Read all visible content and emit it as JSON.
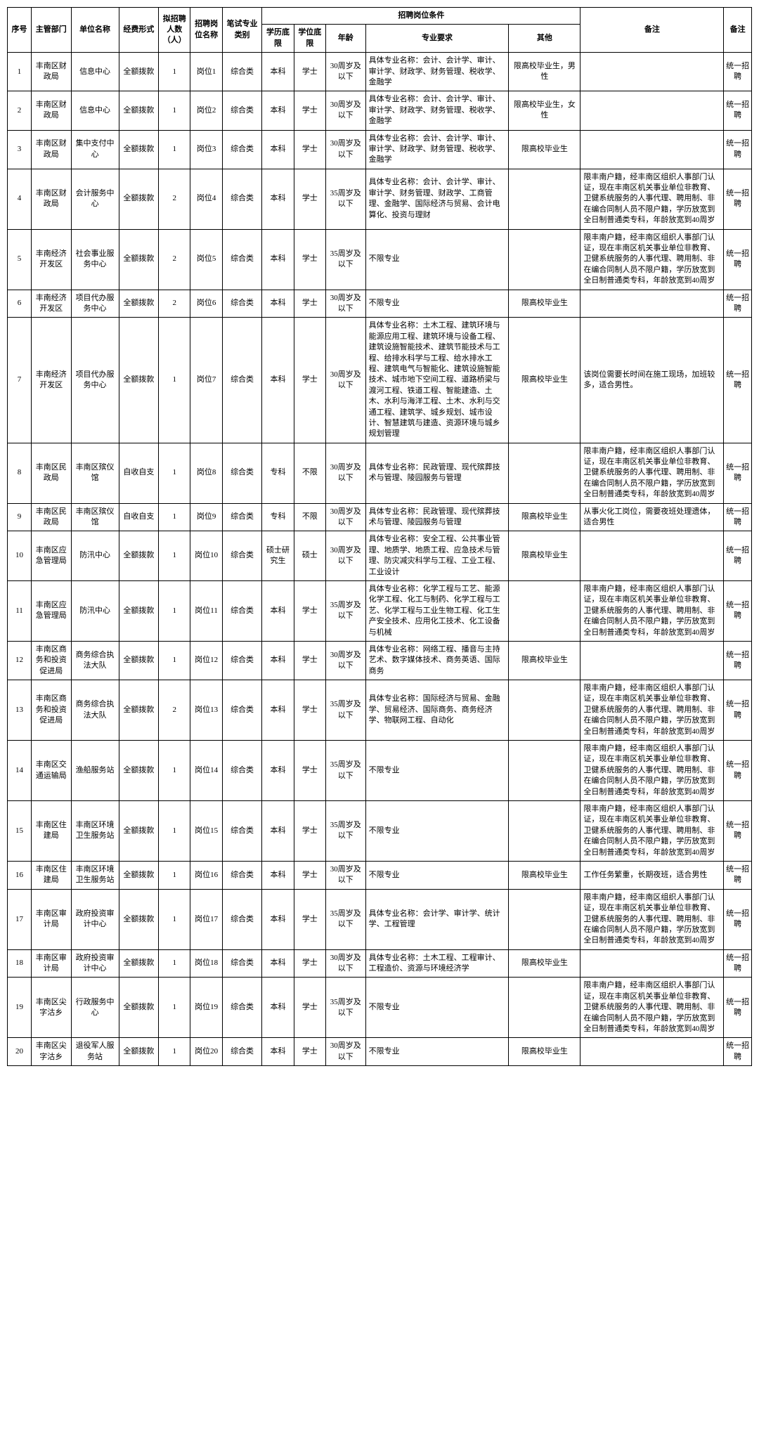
{
  "headers": {
    "seq": "序号",
    "dept": "主管部门",
    "unit": "单位名称",
    "fund": "经费形式",
    "num": "拟招聘人数（人）",
    "post": "招聘岗位名称",
    "exam": "笔试专业类别",
    "condGroup": "招聘岗位条件",
    "edu": "学历底限",
    "deg": "学位底限",
    "age": "年龄",
    "major": "专业要求",
    "other": "其他",
    "remark": "备注",
    "note": "备注"
  },
  "rows": [
    {
      "seq": "1",
      "dept": "丰南区财政局",
      "unit": "信息中心",
      "fund": "全额拨款",
      "num": "1",
      "post": "岗位1",
      "exam": "综合类",
      "edu": "本科",
      "deg": "学士",
      "age": "30周岁及以下",
      "major": "具体专业名称：会计、会计学、审计、审计学、财政学、财务管理、税收学、金融学",
      "other": "限高校毕业生，男性",
      "remark": "",
      "note": "统一招聘"
    },
    {
      "seq": "2",
      "dept": "丰南区财政局",
      "unit": "信息中心",
      "fund": "全额拨款",
      "num": "1",
      "post": "岗位2",
      "exam": "综合类",
      "edu": "本科",
      "deg": "学士",
      "age": "30周岁及以下",
      "major": "具体专业名称：会计、会计学、审计、审计学、财政学、财务管理、税收学、金融学",
      "other": "限高校毕业生，女性",
      "remark": "",
      "note": "统一招聘"
    },
    {
      "seq": "3",
      "dept": "丰南区财政局",
      "unit": "集中支付中心",
      "fund": "全额拨款",
      "num": "1",
      "post": "岗位3",
      "exam": "综合类",
      "edu": "本科",
      "deg": "学士",
      "age": "30周岁及以下",
      "major": "具体专业名称：会计、会计学、审计、审计学、财政学、财务管理、税收学、金融学",
      "other": "限高校毕业生",
      "remark": "",
      "note": "统一招聘"
    },
    {
      "seq": "4",
      "dept": "丰南区财政局",
      "unit": "会计服务中心",
      "fund": "全额拨款",
      "num": "2",
      "post": "岗位4",
      "exam": "综合类",
      "edu": "本科",
      "deg": "学士",
      "age": "35周岁及以下",
      "major": "具体专业名称：会计、会计学、审计、审计学、财务管理、财政学、工商管理、金融学、国际经济与贸易、会计电算化、投资与理财",
      "other": "",
      "remark": "限丰南户籍，经丰南区组织人事部门认证，现在丰南区机关事业单位非教育、卫健系统服务的人事代理、聘用制、非在编合同制人员不限户籍，学历放宽到全日制普通类专科，年龄放宽到40周岁",
      "note": "统一招聘"
    },
    {
      "seq": "5",
      "dept": "丰南经济开发区",
      "unit": "社会事业服务中心",
      "fund": "全额拨款",
      "num": "2",
      "post": "岗位5",
      "exam": "综合类",
      "edu": "本科",
      "deg": "学士",
      "age": "35周岁及以下",
      "major": "不限专业",
      "other": "",
      "remark": "限丰南户籍，经丰南区组织人事部门认证，现在丰南区机关事业单位非教育、卫健系统服务的人事代理、聘用制、非在编合同制人员不限户籍，学历放宽到全日制普通类专科，年龄放宽到40周岁",
      "note": "统一招聘"
    },
    {
      "seq": "6",
      "dept": "丰南经济开发区",
      "unit": "项目代办服务中心",
      "fund": "全额拨款",
      "num": "2",
      "post": "岗位6",
      "exam": "综合类",
      "edu": "本科",
      "deg": "学士",
      "age": "30周岁及以下",
      "major": "不限专业",
      "other": "限高校毕业生",
      "remark": "",
      "note": "统一招聘"
    },
    {
      "seq": "7",
      "dept": "丰南经济开发区",
      "unit": "项目代办服务中心",
      "fund": "全额拨款",
      "num": "1",
      "post": "岗位7",
      "exam": "综合类",
      "edu": "本科",
      "deg": "学士",
      "age": "30周岁及以下",
      "major": "具体专业名称：土木工程、建筑环境与能源应用工程、建筑环境与设备工程、建筑设施智能技术、建筑节能技术与工程、给排水科学与工程、给水排水工程、建筑电气与智能化、建筑设施智能技术、城市地下空间工程、道路桥梁与渡河工程、铁道工程、智能建造、土木、水利与海洋工程、土木、水利与交通工程、建筑学、城乡规划、城市设计、智慧建筑与建造、资源环境与城乡规划管理",
      "other": "限高校毕业生",
      "remark": "该岗位需要长时间在施工现场，加班较多，适合男性。",
      "note": "统一招聘"
    },
    {
      "seq": "8",
      "dept": "丰南区民政局",
      "unit": "丰南区殡仪馆",
      "fund": "自收自支",
      "num": "1",
      "post": "岗位8",
      "exam": "综合类",
      "edu": "专科",
      "deg": "不限",
      "age": "30周岁及以下",
      "major": "具体专业名称：民政管理、现代殡葬技术与管理、陵园服务与管理",
      "other": "",
      "remark": "限丰南户籍，经丰南区组织人事部门认证，现在丰南区机关事业单位非教育、卫健系统服务的人事代理、聘用制、非在编合同制人员不限户籍，学历放宽到全日制普通类专科，年龄放宽到40周岁",
      "note": "统一招聘"
    },
    {
      "seq": "9",
      "dept": "丰南区民政局",
      "unit": "丰南区殡仪馆",
      "fund": "自收自支",
      "num": "1",
      "post": "岗位9",
      "exam": "综合类",
      "edu": "专科",
      "deg": "不限",
      "age": "30周岁及以下",
      "major": "具体专业名称：民政管理、现代殡葬技术与管理、陵园服务与管理",
      "other": "限高校毕业生",
      "remark": "从事火化工岗位，需要夜班处理遗体，适合男性",
      "note": "统一招聘"
    },
    {
      "seq": "10",
      "dept": "丰南区应急管理局",
      "unit": "防汛中心",
      "fund": "全额拨款",
      "num": "1",
      "post": "岗位10",
      "exam": "综合类",
      "edu": "硕士研究生",
      "deg": "硕士",
      "age": "30周岁及以下",
      "major": "具体专业名称：安全工程、公共事业管理、地质学、地质工程、应急技术与管理、防灾减灾科学与工程、工业工程、工业设计",
      "other": "限高校毕业生",
      "remark": "",
      "note": "统一招聘"
    },
    {
      "seq": "11",
      "dept": "丰南区应急管理局",
      "unit": "防汛中心",
      "fund": "全额拨款",
      "num": "1",
      "post": "岗位11",
      "exam": "综合类",
      "edu": "本科",
      "deg": "学士",
      "age": "35周岁及以下",
      "major": "具体专业名称：化学工程与工艺、能源化学工程、化工与制药、化学工程与工艺、化学工程与工业生物工程、化工生产安全技术、应用化工技术、化工设备与机械",
      "other": "",
      "remark": "限丰南户籍，经丰南区组织人事部门认证，现在丰南区机关事业单位非教育、卫健系统服务的人事代理、聘用制、非在编合同制人员不限户籍，学历放宽到全日制普通类专科，年龄放宽到40周岁",
      "note": "统一招聘"
    },
    {
      "seq": "12",
      "dept": "丰南区商务和投资促进局",
      "unit": "商务综合执法大队",
      "fund": "全额拨款",
      "num": "1",
      "post": "岗位12",
      "exam": "综合类",
      "edu": "本科",
      "deg": "学士",
      "age": "30周岁及以下",
      "major": "具体专业名称：网络工程、播音与主持艺术、数字媒体技术、商务英语、国际商务",
      "other": "限高校毕业生",
      "remark": "",
      "note": "统一招聘"
    },
    {
      "seq": "13",
      "dept": "丰南区商务和投资促进局",
      "unit": "商务综合执法大队",
      "fund": "全额拨款",
      "num": "2",
      "post": "岗位13",
      "exam": "综合类",
      "edu": "本科",
      "deg": "学士",
      "age": "35周岁及以下",
      "major": "具体专业名称：国际经济与贸易、金融学、贸易经济、国际商务、商务经济学、物联网工程、自动化",
      "other": "",
      "remark": "限丰南户籍，经丰南区组织人事部门认证，现在丰南区机关事业单位非教育、卫健系统服务的人事代理、聘用制、非在编合同制人员不限户籍，学历放宽到全日制普通类专科，年龄放宽到40周岁",
      "note": "统一招聘"
    },
    {
      "seq": "14",
      "dept": "丰南区交通运输局",
      "unit": "渔船服务站",
      "fund": "全额拨款",
      "num": "1",
      "post": "岗位14",
      "exam": "综合类",
      "edu": "本科",
      "deg": "学士",
      "age": "35周岁及以下",
      "major": "不限专业",
      "other": "",
      "remark": "限丰南户籍，经丰南区组织人事部门认证，现在丰南区机关事业单位非教育、卫健系统服务的人事代理、聘用制、非在编合同制人员不限户籍，学历放宽到全日制普通类专科，年龄放宽到40周岁",
      "note": "统一招聘"
    },
    {
      "seq": "15",
      "dept": "丰南区住建局",
      "unit": "丰南区环境卫生服务站",
      "fund": "全额拨款",
      "num": "1",
      "post": "岗位15",
      "exam": "综合类",
      "edu": "本科",
      "deg": "学士",
      "age": "35周岁及以下",
      "major": "不限专业",
      "other": "",
      "remark": "限丰南户籍，经丰南区组织人事部门认证，现在丰南区机关事业单位非教育、卫健系统服务的人事代理、聘用制、非在编合同制人员不限户籍，学历放宽到全日制普通类专科，年龄放宽到40周岁",
      "note": "统一招聘"
    },
    {
      "seq": "16",
      "dept": "丰南区住建局",
      "unit": "丰南区环境卫生服务站",
      "fund": "全额拨款",
      "num": "1",
      "post": "岗位16",
      "exam": "综合类",
      "edu": "本科",
      "deg": "学士",
      "age": "30周岁及以下",
      "major": "不限专业",
      "other": "限高校毕业生",
      "remark": "工作任务繁重，长期夜班，适合男性",
      "note": "统一招聘"
    },
    {
      "seq": "17",
      "dept": "丰南区审计局",
      "unit": "政府投资审计中心",
      "fund": "全额拨款",
      "num": "1",
      "post": "岗位17",
      "exam": "综合类",
      "edu": "本科",
      "deg": "学士",
      "age": "35周岁及以下",
      "major": "具体专业名称：会计学、审计学、统计学、工程管理",
      "other": "",
      "remark": "限丰南户籍，经丰南区组织人事部门认证，现在丰南区机关事业单位非教育、卫健系统服务的人事代理、聘用制、非在编合同制人员不限户籍，学历放宽到全日制普通类专科，年龄放宽到40周岁",
      "note": "统一招聘"
    },
    {
      "seq": "18",
      "dept": "丰南区审计局",
      "unit": "政府投资审计中心",
      "fund": "全额拨款",
      "num": "1",
      "post": "岗位18",
      "exam": "综合类",
      "edu": "本科",
      "deg": "学士",
      "age": "30周岁及以下",
      "major": "具体专业名称：土木工程、工程审计、工程造价、资源与环境经济学",
      "other": "限高校毕业生",
      "remark": "",
      "note": "统一招聘"
    },
    {
      "seq": "19",
      "dept": "丰南区尖字沽乡",
      "unit": "行政服务中心",
      "fund": "全额拨款",
      "num": "1",
      "post": "岗位19",
      "exam": "综合类",
      "edu": "本科",
      "deg": "学士",
      "age": "35周岁及以下",
      "major": "不限专业",
      "other": "",
      "remark": "限丰南户籍，经丰南区组织人事部门认证，现在丰南区机关事业单位非教育、卫健系统服务的人事代理、聘用制、非在编合同制人员不限户籍，学历放宽到全日制普通类专科，年龄放宽到40周岁",
      "note": "统一招聘"
    },
    {
      "seq": "20",
      "dept": "丰南区尖字沽乡",
      "unit": "退役军人服务站",
      "fund": "全额拨款",
      "num": "1",
      "post": "岗位20",
      "exam": "综合类",
      "edu": "本科",
      "deg": "学士",
      "age": "30周岁及以下",
      "major": "不限专业",
      "other": "限高校毕业生",
      "remark": "",
      "note": "统一招聘"
    }
  ]
}
